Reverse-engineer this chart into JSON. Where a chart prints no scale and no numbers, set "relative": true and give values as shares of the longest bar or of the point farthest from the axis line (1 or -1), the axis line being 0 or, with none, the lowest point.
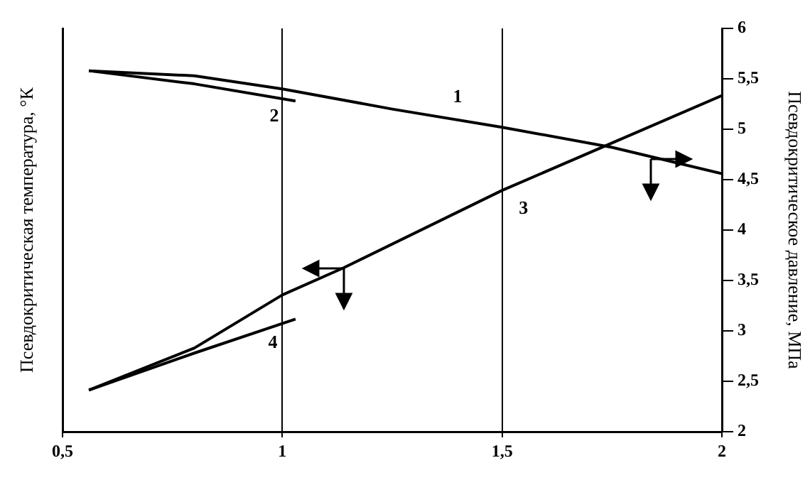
{
  "chart_data": [
    {
      "type": "line",
      "y2label": "Псевдокритическое давление, МПа",
      "xlim": [
        0.5,
        2
      ],
      "xticks": [
        {
          "value": 0.5,
          "label": "0,5"
        },
        1,
        {
          "value": 1.5,
          "label": "1,5"
        },
        2
      ],
      "y2lim": [
        2,
        6
      ],
      "y2ticks": [
        2,
        {
          "value": 2.5,
          "label": "2,5"
        },
        3,
        {
          "value": 3.5,
          "label": "3,5"
        },
        4,
        {
          "value": 4.5,
          "label": "4,5"
        },
        5,
        {
          "value": 5.5,
          "label": "5,5"
        },
        6
      ],
      "series": [
        {
          "color": "#000000",
          "axis": "y2",
          "x": [
            0.56,
            0.8,
            1,
            1.25,
            1.5,
            1.75,
            2
          ],
          "values": [
            5.58,
            5.53,
            5.4,
            5.2,
            5.02,
            4.82,
            4.56
          ]
        },
        {
          "color": "#000000",
          "axis": "y2",
          "x": [
            0.56,
            0.8,
            1.03
          ],
          "values": [
            5.58,
            5.45,
            5.28
          ]
        }
      ],
      "annotations": [
        "1",
        "2"
      ],
      "grid": "x",
      "legend": false,
      "marker": "none",
      "line_style": "solid"
    },
    {
      "type": "line",
      "ylabel": "Псевдокритическая температура, °К",
      "relative": true,
      "xlim": [
        0.5,
        2
      ],
      "series": [
        {
          "color": "#000000",
          "x": [
            0.56,
            0.8,
            1,
            1.14,
            1.5,
            2
          ],
          "values": [
            0.124,
            0.249,
            0.407,
            0.488,
            0.718,
            1
          ]
        },
        {
          "color": "#000000",
          "x": [
            0.56,
            0.8,
            1.03
          ],
          "values": [
            0.124,
            0.234,
            0.335
          ]
        }
      ],
      "annotations": [
        "3",
        "4"
      ],
      "legend": false,
      "marker": "none",
      "line_style": "solid"
    }
  ]
}
